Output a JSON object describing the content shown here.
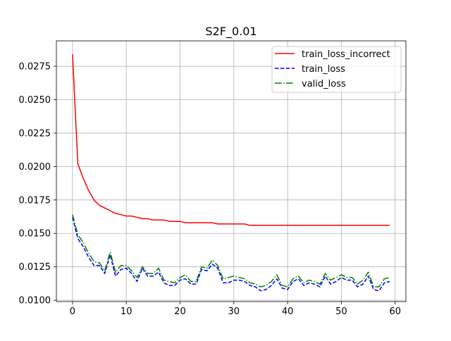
{
  "chart_data": {
    "type": "line",
    "title": "S2F_0.01",
    "xlabel": "",
    "ylabel": "",
    "xlim": [
      -3,
      62
    ],
    "ylim": [
      0.0099,
      0.0294
    ],
    "xticks": [
      0,
      10,
      20,
      30,
      40,
      50,
      60
    ],
    "yticks": [
      0.01,
      0.0125,
      0.015,
      0.0175,
      0.02,
      0.0225,
      0.025,
      0.0275
    ],
    "ytick_labels": [
      "0.0100",
      "0.0125",
      "0.0150",
      "0.0175",
      "0.0200",
      "0.0225",
      "0.0250",
      "0.0275"
    ],
    "grid": true,
    "legend_position": "top-right",
    "x": [
      0,
      1,
      2,
      3,
      4,
      5,
      6,
      7,
      8,
      9,
      10,
      11,
      12,
      13,
      14,
      15,
      16,
      17,
      18,
      19,
      20,
      21,
      22,
      23,
      24,
      25,
      26,
      27,
      28,
      29,
      30,
      31,
      32,
      33,
      34,
      35,
      36,
      37,
      38,
      39,
      40,
      41,
      42,
      43,
      44,
      45,
      46,
      47,
      48,
      49,
      50,
      51,
      52,
      53,
      54,
      55,
      56,
      57,
      58,
      59
    ],
    "series": [
      {
        "name": "train_loss_incorrect",
        "color": "#ff0000",
        "style": "solid",
        "values": [
          0.0284,
          0.0202,
          0.0191,
          0.0182,
          0.0175,
          0.0171,
          0.0169,
          0.0167,
          0.0165,
          0.0164,
          0.0163,
          0.0163,
          0.0162,
          0.0161,
          0.0161,
          0.016,
          0.016,
          0.016,
          0.0159,
          0.0159,
          0.0159,
          0.0158,
          0.0158,
          0.0158,
          0.0158,
          0.0158,
          0.0158,
          0.0157,
          0.0157,
          0.0157,
          0.0157,
          0.0157,
          0.0157,
          0.0156,
          0.0156,
          0.0156,
          0.0156,
          0.0156,
          0.0156,
          0.0156,
          0.0156,
          0.0156,
          0.0156,
          0.0156,
          0.0156,
          0.0156,
          0.0156,
          0.0156,
          0.0156,
          0.0156,
          0.0156,
          0.0156,
          0.0156,
          0.0156,
          0.0156,
          0.0156,
          0.0156,
          0.0156,
          0.0156,
          0.0156
        ]
      },
      {
        "name": "train_loss",
        "color": "#0000ff",
        "style": "dashed",
        "values": [
          0.0162,
          0.0146,
          0.014,
          0.0132,
          0.0126,
          0.0126,
          0.012,
          0.0134,
          0.0118,
          0.0123,
          0.0124,
          0.012,
          0.0114,
          0.0124,
          0.0118,
          0.0118,
          0.0121,
          0.0113,
          0.0111,
          0.0111,
          0.0115,
          0.0116,
          0.0112,
          0.0112,
          0.0123,
          0.0122,
          0.0127,
          0.0124,
          0.0113,
          0.0113,
          0.0115,
          0.0115,
          0.0114,
          0.0111,
          0.011,
          0.0107,
          0.0108,
          0.0111,
          0.0116,
          0.0109,
          0.0108,
          0.0114,
          0.0116,
          0.0111,
          0.0113,
          0.0112,
          0.011,
          0.0118,
          0.0112,
          0.0114,
          0.0117,
          0.0115,
          0.0115,
          0.011,
          0.0112,
          0.0118,
          0.0108,
          0.0107,
          0.0113,
          0.0114
        ]
      },
      {
        "name": "valid_loss",
        "color": "#008000",
        "style": "dashdot",
        "values": [
          0.0164,
          0.0149,
          0.0143,
          0.0135,
          0.0129,
          0.0128,
          0.0122,
          0.0136,
          0.0121,
          0.0126,
          0.0126,
          0.0122,
          0.0117,
          0.0125,
          0.012,
          0.012,
          0.0124,
          0.0115,
          0.0114,
          0.0113,
          0.0117,
          0.0119,
          0.0114,
          0.0114,
          0.0125,
          0.0124,
          0.013,
          0.0126,
          0.0116,
          0.0117,
          0.0118,
          0.0117,
          0.0116,
          0.0113,
          0.0112,
          0.011,
          0.0111,
          0.0114,
          0.0119,
          0.0111,
          0.011,
          0.0116,
          0.0118,
          0.0113,
          0.0115,
          0.0114,
          0.0112,
          0.012,
          0.0115,
          0.0117,
          0.0119,
          0.0117,
          0.0117,
          0.0112,
          0.0115,
          0.0121,
          0.011,
          0.011,
          0.0116,
          0.0117
        ]
      }
    ]
  }
}
